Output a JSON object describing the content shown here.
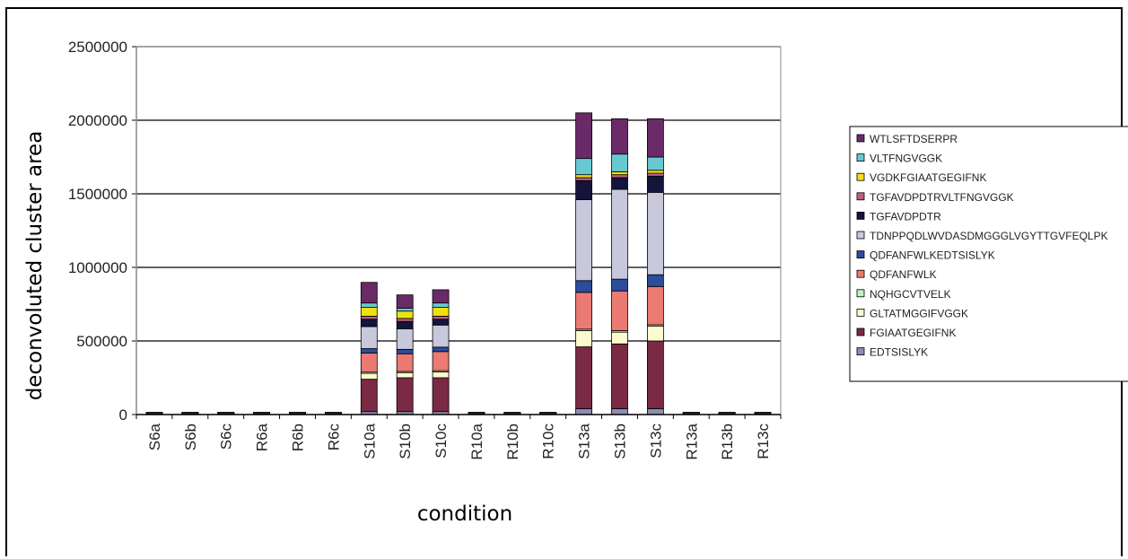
{
  "chart_data": {
    "type": "bar",
    "stacked": true,
    "title": "",
    "xlabel": "condition",
    "ylabel": "deconvoluted cluster area",
    "ylim": [
      0,
      2500000
    ],
    "yticks": [
      "0",
      "500000",
      "1000000",
      "1500000",
      "2000000",
      "2500000"
    ],
    "grid": true,
    "legend_position": "right",
    "categories": [
      "S6a",
      "S6b",
      "S6c",
      "R6a",
      "R6b",
      "R6c",
      "S10a",
      "S10b",
      "S10c",
      "R10a",
      "R10b",
      "R10c",
      "S13a",
      "S13b",
      "S13c",
      "R13a",
      "R13b",
      "R13c"
    ],
    "series": [
      {
        "name": "EDTSISLYK",
        "color": "#8c8cb4",
        "values": [
          1000,
          1000,
          1000,
          1000,
          1000,
          1000,
          20000,
          20000,
          20000,
          1000,
          1000,
          1000,
          40000,
          40000,
          40000,
          1000,
          1000,
          1000
        ]
      },
      {
        "name": "FGIAATGEGIFNK",
        "color": "#7a2a44",
        "values": [
          2000,
          2000,
          2000,
          2000,
          2000,
          2000,
          220000,
          230000,
          230000,
          2000,
          2000,
          2000,
          420000,
          440000,
          460000,
          2000,
          2000,
          2000
        ]
      },
      {
        "name": "GLTATMGGIFVGGK",
        "color": "#fdfbcd",
        "values": [
          0,
          0,
          0,
          0,
          0,
          0,
          40000,
          35000,
          40000,
          0,
          0,
          0,
          110000,
          80000,
          100000,
          0,
          0,
          0
        ]
      },
      {
        "name": "NQHGCVTVELK",
        "color": "#c4f0c4",
        "values": [
          0,
          0,
          0,
          0,
          0,
          0,
          8000,
          8000,
          8000,
          0,
          0,
          0,
          10000,
          10000,
          10000,
          0,
          0,
          0
        ]
      },
      {
        "name": "QDFANFWLK",
        "color": "#ea7a72",
        "values": [
          1000,
          1000,
          1000,
          1000,
          1000,
          1000,
          130000,
          120000,
          130000,
          1000,
          1000,
          1000,
          250000,
          270000,
          260000,
          1000,
          1000,
          1000
        ]
      },
      {
        "name": "QDFANFWLKEDTSISLYK",
        "color": "#2c4c9c",
        "values": [
          0,
          0,
          0,
          0,
          0,
          0,
          30000,
          30000,
          30000,
          0,
          0,
          0,
          80000,
          80000,
          80000,
          0,
          0,
          0
        ]
      },
      {
        "name": "TDNPPQDLWVDASDMGGGLVGYTTGVFEQLPK",
        "color": "#c8c8dc",
        "values": [
          1000,
          1000,
          1000,
          1000,
          1000,
          1000,
          150000,
          140000,
          150000,
          1000,
          1000,
          1000,
          550000,
          610000,
          560000,
          1000,
          1000,
          1000
        ]
      },
      {
        "name": "TGFAVDPDTR",
        "color": "#14143c",
        "values": [
          0,
          0,
          0,
          0,
          0,
          0,
          50000,
          50000,
          40000,
          0,
          0,
          0,
          130000,
          80000,
          110000,
          0,
          0,
          0
        ]
      },
      {
        "name": "TGFAVDPDTRVLTFNGVGGK",
        "color": "#c06080",
        "values": [
          0,
          0,
          0,
          0,
          0,
          0,
          20000,
          20000,
          20000,
          0,
          0,
          0,
          20000,
          20000,
          20000,
          0,
          0,
          0
        ]
      },
      {
        "name": "VGDKFGIAATGEGIFNK",
        "color": "#f0e010",
        "values": [
          1000,
          1000,
          1000,
          1000,
          1000,
          1000,
          60000,
          50000,
          60000,
          1000,
          1000,
          1000,
          20000,
          20000,
          20000,
          1000,
          1000,
          1000
        ]
      },
      {
        "name": "VLTFNGVGGK",
        "color": "#68c8d0",
        "values": [
          0,
          0,
          0,
          0,
          0,
          0,
          30000,
          20000,
          30000,
          0,
          0,
          0,
          110000,
          120000,
          90000,
          0,
          0,
          0
        ]
      },
      {
        "name": "WTLSFTDSERPR",
        "color": "#6a2a68",
        "values": [
          1000,
          1000,
          1000,
          1000,
          1000,
          1000,
          140000,
          90000,
          90000,
          1000,
          1000,
          1000,
          310000,
          240000,
          260000,
          1000,
          1000,
          1000
        ]
      }
    ]
  }
}
